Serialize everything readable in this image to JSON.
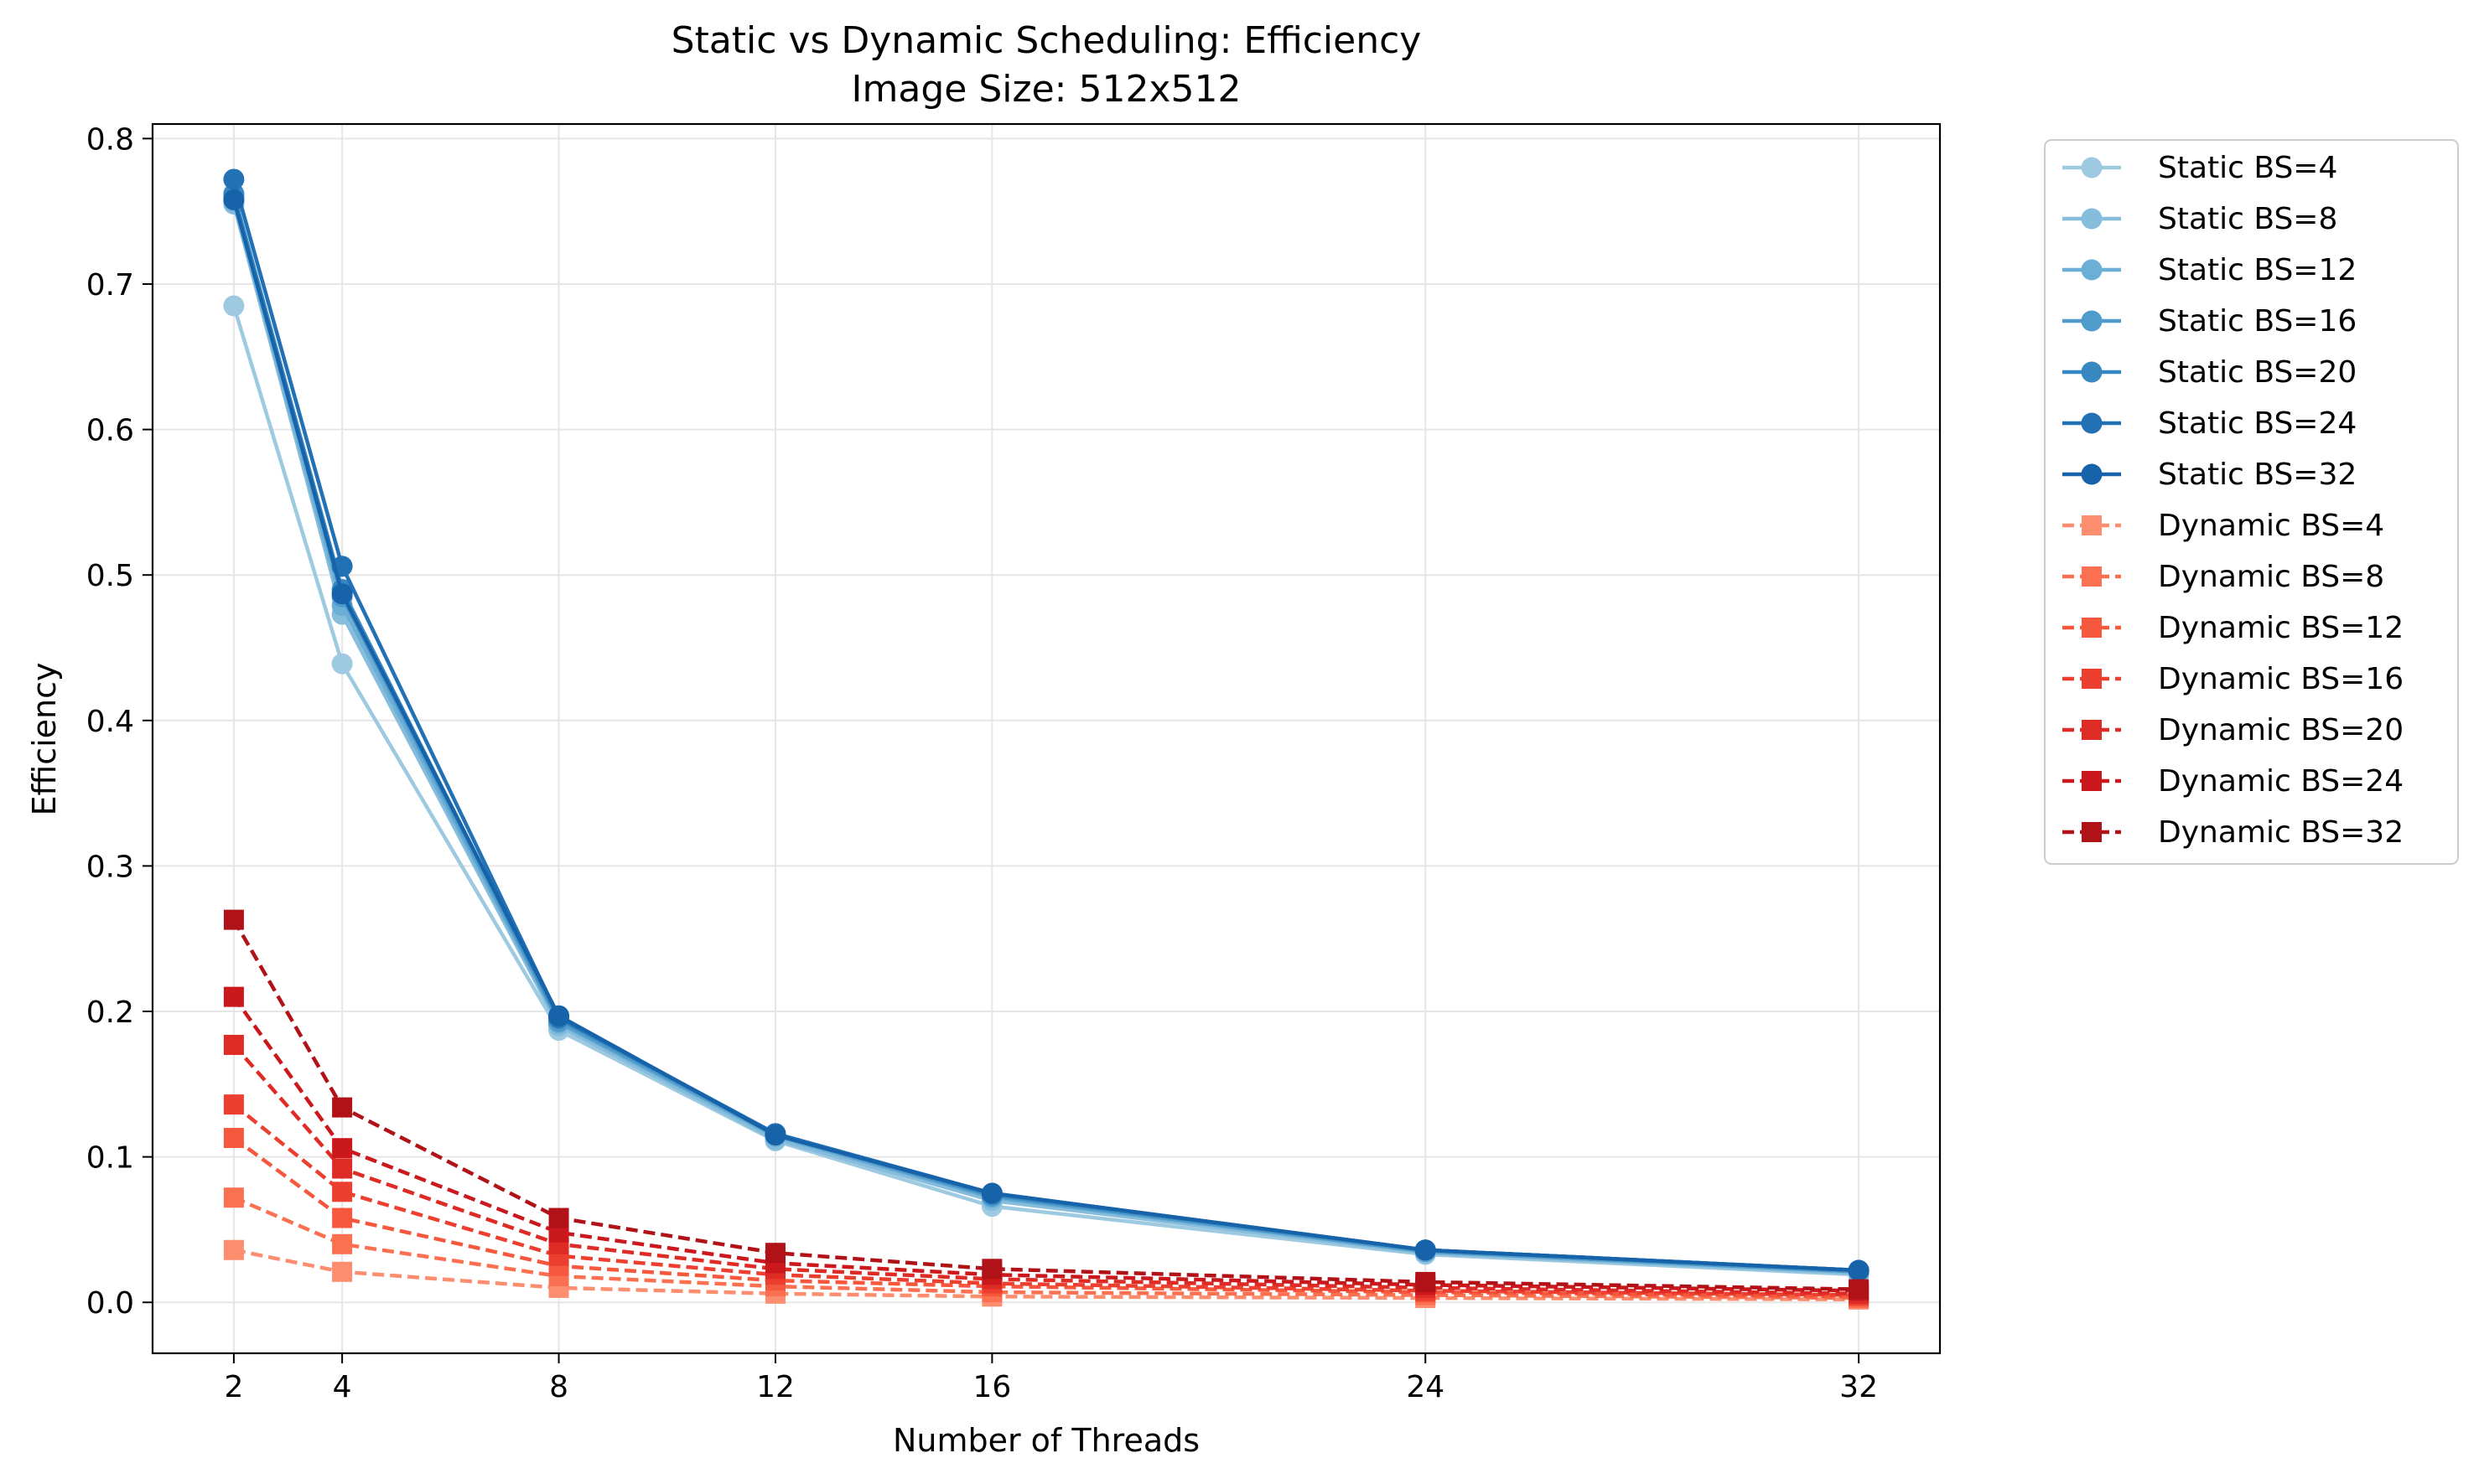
{
  "chart_data": {
    "type": "line",
    "title": "Static vs Dynamic Scheduling: Efficiency",
    "subtitle": "Image Size: 512x512",
    "xlabel": "Number of Threads",
    "ylabel": "Efficiency",
    "x": [
      2,
      4,
      8,
      12,
      16,
      24,
      32
    ],
    "xlim": [
      0.5,
      33.5
    ],
    "ylim": [
      -0.035,
      0.81
    ],
    "xticks": [
      2,
      4,
      8,
      12,
      16,
      24,
      32
    ],
    "yticks": [
      0.0,
      0.1,
      0.2,
      0.3,
      0.4,
      0.5,
      0.6,
      0.7,
      0.8
    ],
    "ytick_labels": [
      "0.0",
      "0.1",
      "0.2",
      "0.3",
      "0.4",
      "0.5",
      "0.6",
      "0.7",
      "0.8"
    ],
    "grid": true,
    "legend_position": "outside-right",
    "series": [
      {
        "name": "Static BS=4",
        "color": "#9ecae1",
        "style": "solid",
        "marker": "circle",
        "values": [
          0.685,
          0.439,
          0.187,
          0.111,
          0.066,
          0.033,
          0.019
        ]
      },
      {
        "name": "Static BS=8",
        "color": "#86bcdc",
        "style": "solid",
        "marker": "circle",
        "values": [
          0.755,
          0.473,
          0.19,
          0.112,
          0.07,
          0.034,
          0.02
        ]
      },
      {
        "name": "Static BS=12",
        "color": "#6baed6",
        "style": "solid",
        "marker": "circle",
        "values": [
          0.757,
          0.479,
          0.192,
          0.114,
          0.072,
          0.035,
          0.021
        ]
      },
      {
        "name": "Static BS=16",
        "color": "#4f9bcb",
        "style": "solid",
        "marker": "circle",
        "values": [
          0.76,
          0.485,
          0.193,
          0.115,
          0.073,
          0.035,
          0.021
        ]
      },
      {
        "name": "Static BS=20",
        "color": "#3787c0",
        "style": "solid",
        "marker": "circle",
        "values": [
          0.762,
          0.49,
          0.195,
          0.116,
          0.074,
          0.036,
          0.022
        ]
      },
      {
        "name": "Static BS=24",
        "color": "#2371b5",
        "style": "solid",
        "marker": "circle",
        "values": [
          0.772,
          0.506,
          0.196,
          0.116,
          0.075,
          0.036,
          0.022
        ]
      },
      {
        "name": "Static BS=32",
        "color": "#1763aa",
        "style": "solid",
        "marker": "circle",
        "values": [
          0.758,
          0.487,
          0.197,
          0.115,
          0.075,
          0.036,
          0.022
        ]
      },
      {
        "name": "Dynamic BS=4",
        "color": "#fc8d6f",
        "style": "dashed",
        "marker": "square",
        "values": [
          0.036,
          0.021,
          0.01,
          0.006,
          0.004,
          0.003,
          0.002
        ]
      },
      {
        "name": "Dynamic BS=8",
        "color": "#fb7050",
        "style": "dashed",
        "marker": "square",
        "values": [
          0.072,
          0.04,
          0.018,
          0.011,
          0.007,
          0.005,
          0.003
        ]
      },
      {
        "name": "Dynamic BS=12",
        "color": "#f6583e",
        "style": "dashed",
        "marker": "square",
        "values": [
          0.113,
          0.058,
          0.025,
          0.015,
          0.011,
          0.007,
          0.004
        ]
      },
      {
        "name": "Dynamic BS=16",
        "color": "#ec3f2f",
        "style": "dashed",
        "marker": "square",
        "values": [
          0.136,
          0.076,
          0.032,
          0.019,
          0.013,
          0.008,
          0.005
        ]
      },
      {
        "name": "Dynamic BS=20",
        "color": "#de2b25",
        "style": "dashed",
        "marker": "square",
        "values": [
          0.177,
          0.092,
          0.04,
          0.023,
          0.016,
          0.01,
          0.006
        ]
      },
      {
        "name": "Dynamic BS=24",
        "color": "#cb181d",
        "style": "dashed",
        "marker": "square",
        "values": [
          0.21,
          0.106,
          0.048,
          0.027,
          0.019,
          0.012,
          0.008
        ]
      },
      {
        "name": "Dynamic BS=32",
        "color": "#b11218",
        "style": "dashed",
        "marker": "square",
        "values": [
          0.263,
          0.134,
          0.058,
          0.034,
          0.023,
          0.014,
          0.009
        ]
      }
    ]
  }
}
